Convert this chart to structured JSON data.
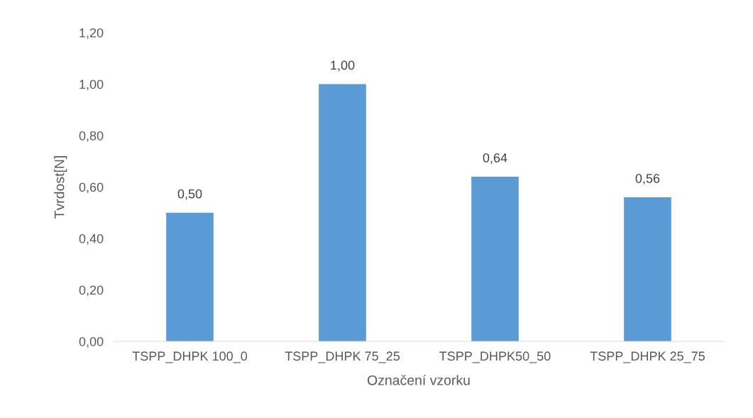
{
  "chart_data": {
    "type": "bar",
    "xlabel": "Označení vzorku",
    "ylabel": "Tvrdost[N]",
    "categories": [
      "TSPP_DHPK 100_0",
      "TSPP_DHPK 75_25",
      "TSPP_DHPK50_50",
      "TSPP_DHPK 25_75"
    ],
    "values": [
      0.5,
      1.0,
      0.64,
      0.56
    ],
    "value_labels": [
      "0,50",
      "1,00",
      "0,64",
      "0,56"
    ],
    "color": "#5b9bd5",
    "ylim": [
      0,
      1.2
    ],
    "yticks": [
      {
        "value": 0,
        "label": "0,00"
      },
      {
        "value": 0.2,
        "label": "0,20"
      },
      {
        "value": 0.4,
        "label": "0,40"
      },
      {
        "value": 0.6,
        "label": "0,60"
      },
      {
        "value": 0.8,
        "label": "0,80"
      },
      {
        "value": 1.0,
        "label": "1,00"
      },
      {
        "value": 1.2,
        "label": "1,20"
      }
    ],
    "grid": false,
    "legend": false
  }
}
